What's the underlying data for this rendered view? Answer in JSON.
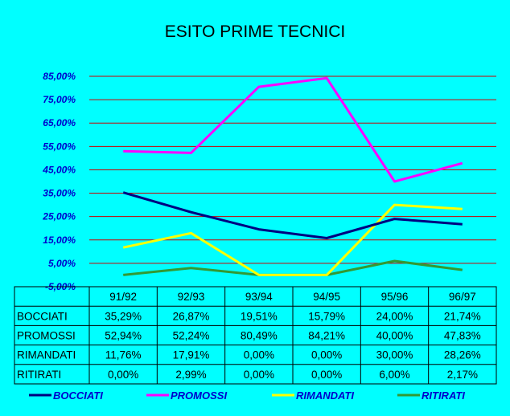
{
  "chart_data": {
    "type": "line",
    "title": "ESITO PRIME TECNICI",
    "categories": [
      "91/92",
      "92/93",
      "93/94",
      "94/95",
      "95/96",
      "96/97"
    ],
    "yticks": [
      "85,00%",
      "75,00%",
      "65,00%",
      "55,00%",
      "45,00%",
      "35,00%",
      "25,00%",
      "15,00%",
      "5,00%",
      "-5,00%"
    ],
    "ylim": [
      -5,
      85
    ],
    "grid": true,
    "legend_position": "bottom",
    "series": [
      {
        "name": "BOCCIATI",
        "color": "#000080",
        "values": [
          35.29,
          26.87,
          19.51,
          15.79,
          24.0,
          21.74
        ],
        "labels": [
          "35,29%",
          "26,87%",
          "19,51%",
          "15,79%",
          "24,00%",
          "21,74%"
        ]
      },
      {
        "name": "PROMOSSI",
        "color": "#FF00FF",
        "values": [
          52.94,
          52.24,
          80.49,
          84.21,
          40.0,
          47.83
        ],
        "labels": [
          "52,94%",
          "52,24%",
          "80,49%",
          "84,21%",
          "40,00%",
          "47,83%"
        ]
      },
      {
        "name": "RIMANDATI",
        "color": "#FFFF00",
        "values": [
          11.76,
          17.91,
          0.0,
          0.0,
          30.0,
          28.26
        ],
        "labels": [
          "11,76%",
          "17,91%",
          "0,00%",
          "0,00%",
          "30,00%",
          "28,26%"
        ]
      },
      {
        "name": "RITIRATI",
        "color": "#339933",
        "values": [
          0.0,
          2.99,
          0.0,
          0.0,
          6.0,
          2.17
        ],
        "labels": [
          "0,00%",
          "2,99%",
          "0,00%",
          "0,00%",
          "6,00%",
          "2,17%"
        ]
      }
    ]
  }
}
